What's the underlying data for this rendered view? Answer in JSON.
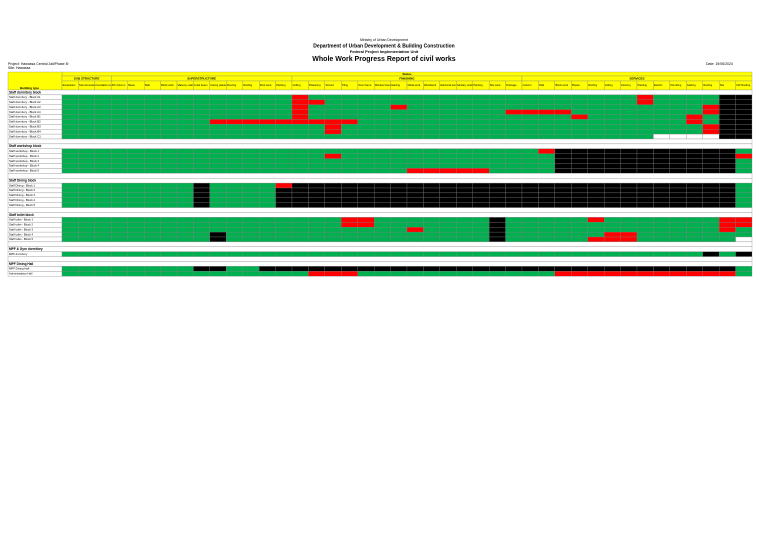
{
  "header": {
    "ministry": "Ministry of Urban Development",
    "department": "Department of Urban Development & Building Construction",
    "unit": "Federal Project Implementation Unit",
    "title": "Whole Work Progress Report of civil works",
    "project": "Project: Hawassa Central Jail/Phase III",
    "site": "Site: Hawassa",
    "date": "Date: 19/06/2024"
  },
  "palette": {
    "g": "#00b050",
    "r": "#ff0000",
    "k": "#000000",
    "w": "#ffffff"
  },
  "table": {
    "status_label": "Status",
    "building_label": "Building type",
    "groups": [
      {
        "name": "SUB STRUCTURE",
        "columns": [
          "Excavation",
          "Sub-structure concrete",
          "Foundation wall"
        ]
      },
      {
        "name": "SUPERSTRUCTURE",
        "columns": [
          "RC Column",
          "Beam",
          "Slab",
          "Block work",
          "Masonry wall",
          "Lintel beam",
          "Facing plaster",
          "Flooring",
          "Roofing",
          "Roof work",
          "Painting"
        ]
      },
      {
        "name": "FINISHING",
        "columns": [
          "Ceiling",
          "Plastering",
          "Screed",
          "Tiling",
          "Door frame",
          "Window frame",
          "Glazing",
          "Metal work",
          "Woodwork",
          "Electrical work",
          "Sanitary work",
          "Painting",
          "Site work",
          "Drainage"
        ]
      },
      {
        "name": "SERVICES",
        "columns": [
          "Column",
          "Slab",
          "Block work",
          "Plaster",
          "Roofing",
          "Ceiling",
          "Flooring",
          "Painting",
          "Electric",
          "Plumbing",
          "Glazing",
          "Roofing",
          "Site",
          "CW Roofing"
        ]
      }
    ],
    "rows": [
      {
        "section": "Staff dormitory block"
      },
      {
        "label": "Staff dormitory - Block A1",
        "cells": "gggggg gggggg ggrggg gggggg gggggg gggggr ggggkk"
      },
      {
        "label": "Staff dormitory - Block A2",
        "cells": "gggggg gggggg ggrrgg gggggg gggggg gggggr ggggkk"
      },
      {
        "label": "Staff dormitory - Block A3",
        "cells": "gggggg gggggg ggrggg ggrggg gggggg gggggg gggrkk"
      },
      {
        "label": "Staff dormitory - Block A4",
        "cells": "gggggg gggggg ggrggg gggggg gggrrr rggggg gggrkk"
      },
      {
        "label": "Staff dormitory - Block B1",
        "cells": "gggggg gggggg ggrggg gggggg gggggg grgggg ggrgkk"
      },
      {
        "label": "Staff dormitory - Block B2",
        "cells": "gggggg gggrrr rrrrrr gggggg gggggg gggggg ggrgkk"
      },
      {
        "label": "Staff dormitory - Block B3",
        "cells": "gggggg gggggg ggggrg gggggg gggggg gggggg gggrkk"
      },
      {
        "label": "Staff dormitory - Block B4",
        "cells": "gggggg gggggg ggggrg gggggg gggggg gggggg gggrkk"
      },
      {
        "label": "Staff dormitory - Block C1",
        "cells": "gggggg gggggg gggggg gggggg gggggg gggggg wwwwkk"
      },
      null,
      {
        "section": "Staff workshop block"
      },
      {
        "label": "Staff workshop - Block 1",
        "cells": "gggggg gggggg gggggg gggggg gggggr kkkkkk kkkkkg"
      },
      {
        "label": "Staff workshop - Block 2",
        "cells": "gggggg gggggg ggggrg gggggg gggggg kkkkkk kkkkkr"
      },
      {
        "label": "Staff workshop - Block 3",
        "cells": "gggggg gggggg gggggg gggggg gggggg kkkkkk kkkkkg"
      },
      {
        "label": "Staff workshop - Block 4",
        "cells": "gggggg gggggg gggggg gggggg gggggg kkkkkk kkkkkg"
      },
      {
        "label": "Staff workshop - Block 5",
        "cells": "gggggg gggggg gggggg gggrrr rrgggg kkkkkk kkkkkg"
      },
      null,
      {
        "section": "Staff Dining block"
      },
      {
        "label": "Staff Dining - Block 1",
        "cells": "gggggg ggkggg grkkkk kkkkkk kkkkkk kkkkkk kkkkkg"
      },
      {
        "label": "Staff Dining - Block 2",
        "cells": "gggggg ggkggg gkkkkk kkkkkk kkkkkk kkkkkk kkkkkg"
      },
      {
        "label": "Staff Dining - Block 3",
        "cells": "gggggg ggkggg gkkkkk kkkkkk kkkkkk kkkkkk kkkkkg"
      },
      {
        "label": "Staff Dining - Block 4",
        "cells": "gggggg ggkggg gkkkkk kkkkkk kkkkkk kkkkkk kkkkkg"
      },
      {
        "label": "Staff Dining - Block 5",
        "cells": "gggggg ggkggg gkkkkk kkkkkk kkkkkk kkkkkk kkkkkg"
      },
      null,
      {
        "section": "Staff toilet block"
      },
      {
        "label": "Staff toilet - Block 1",
        "cells": "gggggg gggggg gggggr rggggg ggkggg ggrggg ggggrr"
      },
      {
        "label": "Staff toilet - Block 2",
        "cells": "gggggg gggggg gggggr rggggg ggkggg gggggg ggggrr"
      },
      {
        "label": "Staff toilet - Block 3",
        "cells": "gggggg gggggg gggggg gggrgg ggkggg gggggg ggggrg"
      },
      {
        "label": "Staff toilet - Block 4",
        "cells": "gggggg gggkgg gggggg gggggg ggkggg gggrrg gggggg"
      },
      {
        "label": "Staff toilet - Block 5",
        "cells": "gggggg gggkgg gggggg gggggg ggkggg ggrrrg gggggw"
      },
      null,
      {
        "section": "MPF & Gym dormitory"
      },
      {
        "label": "MPF dormitory",
        "cells": "gggggg gggggg gggggg gggggg gggggg gggggg gggkgk"
      },
      null,
      {
        "section": "MPF Dining Hall"
      },
      {
        "label": "MPF Dining Hall",
        "cells": "gggggg ggkkgg kkkkkk kkkkkk kkkkkk kkkkkk kkkkkg"
      },
      {
        "label": "Administration Hall",
        "cells": "gggggg gggggg gggrrr gggggg gggggg rrrrrr rrrrrg"
      }
    ]
  }
}
